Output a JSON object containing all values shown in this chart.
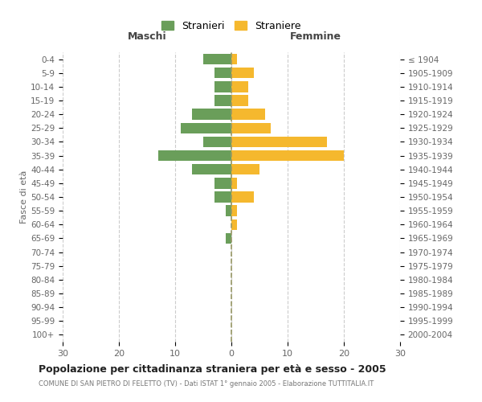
{
  "age_groups": [
    "0-4",
    "5-9",
    "10-14",
    "15-19",
    "20-24",
    "25-29",
    "30-34",
    "35-39",
    "40-44",
    "45-49",
    "50-54",
    "55-59",
    "60-64",
    "65-69",
    "70-74",
    "75-79",
    "80-84",
    "85-89",
    "90-94",
    "95-99",
    "100+"
  ],
  "birth_years": [
    "2000-2004",
    "1995-1999",
    "1990-1994",
    "1985-1989",
    "1980-1984",
    "1975-1979",
    "1970-1974",
    "1965-1969",
    "1960-1964",
    "1955-1959",
    "1950-1954",
    "1945-1949",
    "1940-1944",
    "1935-1939",
    "1930-1934",
    "1925-1929",
    "1920-1924",
    "1915-1919",
    "1910-1914",
    "1905-1909",
    "≤ 1904"
  ],
  "maschi": [
    5,
    3,
    3,
    3,
    7,
    9,
    5,
    13,
    7,
    3,
    3,
    1,
    0,
    1,
    0,
    0,
    0,
    0,
    0,
    0,
    0
  ],
  "femmine": [
    1,
    4,
    3,
    3,
    6,
    7,
    17,
    20,
    5,
    1,
    4,
    1,
    1,
    0,
    0,
    0,
    0,
    0,
    0,
    0,
    0
  ],
  "male_color": "#6a9e5a",
  "female_color": "#f5b82e",
  "title": "Popolazione per cittadinanza straniera per età e sesso - 2005",
  "subtitle": "COMUNE DI SAN PIETRO DI FELETTO (TV) - Dati ISTAT 1° gennaio 2005 - Elaborazione TUTTITALIA.IT",
  "ylabel_left": "Fasce di età",
  "xlabel_maschi": "Maschi",
  "xlabel_femmine": "Femmine",
  "legend_male": "Stranieri",
  "legend_female": "Straniere",
  "xlim": 30,
  "background_color": "#ffffff",
  "grid_color": "#cccccc"
}
